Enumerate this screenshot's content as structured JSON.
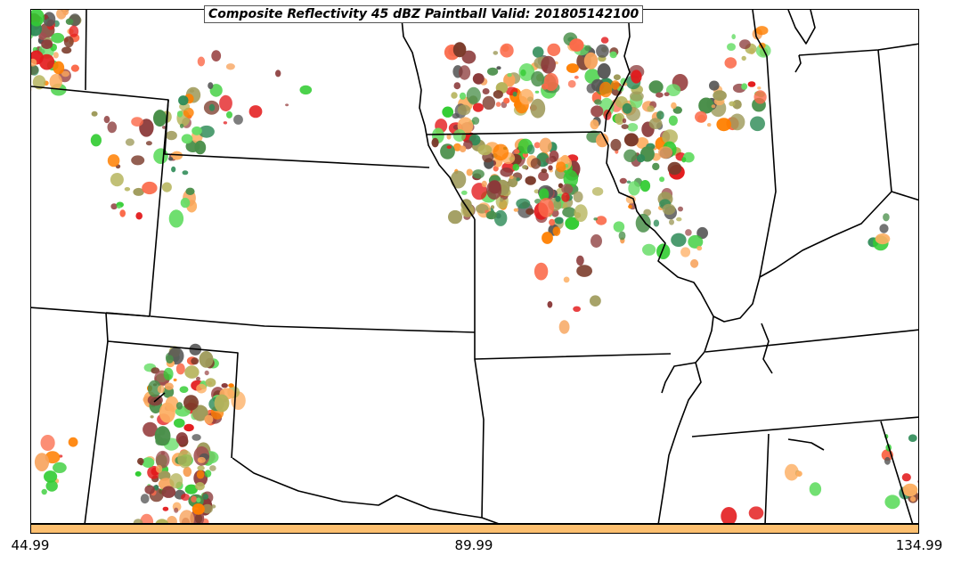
{
  "map": {
    "title": "Composite Reflectivity 45 dBZ Paintball Valid: 201805142100"
  },
  "colorbar": {
    "color": "#FDBF6F",
    "ticks": [
      "44.99",
      "89.99",
      "134.99"
    ]
  },
  "paintball_colors": [
    "#e31a1c",
    "#fb6a4a",
    "#fdae61",
    "#f7a35c",
    "#ff7f00",
    "#33cc33",
    "#66dd66",
    "#2e8b57",
    "#4a8f4a",
    "#9e9a5a",
    "#b5b35a",
    "#8b3a3a",
    "#a05050",
    "#555555",
    "#7a3a2a"
  ]
}
